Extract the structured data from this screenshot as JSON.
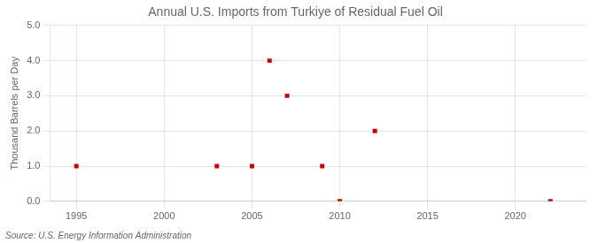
{
  "chart_data": {
    "type": "scatter",
    "title": "Annual U.S. Imports from Turkiye of Residual Fuel Oil",
    "ylabel": "Thousand Barrels per Day",
    "source": "Source: U.S. Energy Information Administration",
    "x": [
      1995,
      2003,
      2005,
      2006,
      2007,
      2009,
      2010,
      2012,
      2022
    ],
    "values": [
      1.0,
      1.0,
      1.0,
      4.0,
      3.0,
      1.0,
      0.0,
      2.0,
      0.0
    ],
    "color": "#cc0000",
    "marker": "square",
    "xlim": [
      1993.5,
      2024
    ],
    "xticks": [
      1995,
      2000,
      2005,
      2010,
      2015,
      2020
    ],
    "ylim": [
      0.0,
      5.0
    ],
    "yticks": [
      {
        "value": 0.0,
        "label": "0.0"
      },
      {
        "value": 1.0,
        "label": "1.0"
      },
      {
        "value": 2.0,
        "label": "2.0"
      },
      {
        "value": 3.0,
        "label": "3.0"
      },
      {
        "value": 4.0,
        "label": "4.0"
      },
      {
        "value": 5.0,
        "label": "5.0"
      }
    ],
    "grid": true
  }
}
